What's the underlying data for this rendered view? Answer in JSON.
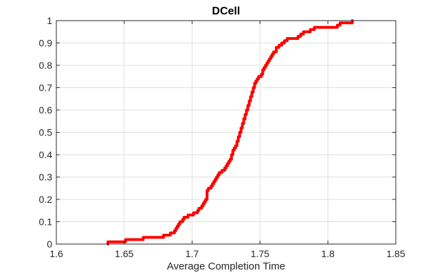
{
  "chart_data": {
    "type": "line",
    "title": "DCell",
    "xlabel": "Average Completion Time",
    "ylabel": "",
    "xlim": [
      1.6,
      1.85
    ],
    "ylim": [
      0,
      1
    ],
    "xticks": [
      1.6,
      1.65,
      1.7,
      1.75,
      1.8,
      1.85
    ],
    "xtick_labels": [
      "1.6",
      "1.65",
      "1.7",
      "1.75",
      "1.8",
      "1.85"
    ],
    "yticks": [
      0,
      0.1,
      0.2,
      0.3,
      0.4,
      0.5,
      0.6,
      0.7,
      0.8,
      0.9,
      1
    ],
    "ytick_labels": [
      "0",
      "0.1",
      "0.2",
      "0.3",
      "0.4",
      "0.5",
      "0.6",
      "0.7",
      "0.8",
      "0.9",
      "1"
    ],
    "grid": true,
    "series": [
      {
        "color": "#ff0000",
        "step": true,
        "x": [
          1.638,
          1.638,
          1.65,
          1.651,
          1.663,
          1.664,
          1.678,
          1.679,
          1.682,
          1.684,
          1.686,
          1.687,
          1.688,
          1.689,
          1.69,
          1.691,
          1.693,
          1.694,
          1.695,
          1.697,
          1.699,
          1.701,
          1.702,
          1.704,
          1.705,
          1.706,
          1.707,
          1.708,
          1.709,
          1.71,
          1.711,
          1.712,
          1.713,
          1.714,
          1.715,
          1.716,
          1.717,
          1.718,
          1.719,
          1.72,
          1.721,
          1.722,
          1.723,
          1.724,
          1.725,
          1.726,
          1.727,
          1.728,
          1.729,
          1.73,
          1.731,
          1.732,
          1.733,
          1.734,
          1.735,
          1.736,
          1.737,
          1.738,
          1.739,
          1.74,
          1.741,
          1.742,
          1.743,
          1.744,
          1.745,
          1.746,
          1.747,
          1.748,
          1.749,
          1.75,
          1.751,
          1.752,
          1.753,
          1.754,
          1.755,
          1.756,
          1.757,
          1.758,
          1.759,
          1.76,
          1.762,
          1.764,
          1.766,
          1.768,
          1.77,
          1.772,
          1.775,
          1.778,
          1.78,
          1.782,
          1.785,
          1.787,
          1.79,
          1.795,
          1.8,
          1.805,
          1.807,
          1.809,
          1.812,
          1.815,
          1.818
        ],
        "y": [
          0.0,
          0.01,
          0.01,
          0.02,
          0.02,
          0.03,
          0.03,
          0.04,
          0.04,
          0.05,
          0.05,
          0.06,
          0.07,
          0.08,
          0.09,
          0.1,
          0.11,
          0.12,
          0.12,
          0.13,
          0.13,
          0.14,
          0.14,
          0.15,
          0.16,
          0.16,
          0.17,
          0.18,
          0.19,
          0.2,
          0.24,
          0.25,
          0.25,
          0.26,
          0.27,
          0.28,
          0.29,
          0.3,
          0.31,
          0.32,
          0.32,
          0.33,
          0.33,
          0.34,
          0.35,
          0.36,
          0.37,
          0.38,
          0.4,
          0.42,
          0.43,
          0.44,
          0.46,
          0.48,
          0.5,
          0.52,
          0.54,
          0.56,
          0.58,
          0.6,
          0.62,
          0.64,
          0.66,
          0.68,
          0.7,
          0.72,
          0.73,
          0.74,
          0.75,
          0.75,
          0.76,
          0.78,
          0.79,
          0.8,
          0.81,
          0.82,
          0.83,
          0.84,
          0.85,
          0.86,
          0.88,
          0.89,
          0.9,
          0.91,
          0.92,
          0.92,
          0.92,
          0.93,
          0.94,
          0.95,
          0.95,
          0.96,
          0.97,
          0.97,
          0.97,
          0.97,
          0.98,
          0.99,
          0.99,
          0.99,
          1.0
        ]
      }
    ]
  }
}
